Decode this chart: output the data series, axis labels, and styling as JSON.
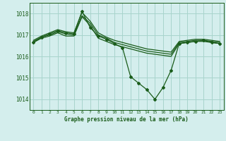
{
  "background_color": "#d4eeed",
  "grid_color": "#a8d4cc",
  "line_color": "#1a5c1a",
  "title": "Graphe pression niveau de la mer (hPa)",
  "xlim": [
    -0.5,
    23.5
  ],
  "ylim": [
    1013.5,
    1018.5
  ],
  "yticks": [
    1014,
    1015,
    1016,
    1017,
    1018
  ],
  "xticks": [
    0,
    1,
    2,
    3,
    4,
    5,
    6,
    7,
    8,
    9,
    10,
    11,
    12,
    13,
    14,
    15,
    16,
    17,
    18,
    19,
    20,
    21,
    22,
    23
  ],
  "series": [
    {
      "x": [
        0,
        1,
        2,
        3,
        4,
        5,
        6,
        7,
        8,
        9,
        10,
        11,
        12,
        13,
        14,
        15,
        16,
        17,
        18,
        19,
        20,
        21,
        22,
        23
      ],
      "y": [
        1016.65,
        1016.85,
        1016.95,
        1017.1,
        1016.95,
        1016.95,
        1017.85,
        1017.45,
        1016.85,
        1016.7,
        1016.55,
        1016.45,
        1016.35,
        1016.25,
        1016.15,
        1016.1,
        1016.05,
        1016.0,
        1016.6,
        1016.65,
        1016.7,
        1016.7,
        1016.65,
        1016.6
      ],
      "marker": false
    },
    {
      "x": [
        0,
        1,
        2,
        3,
        4,
        5,
        6,
        7,
        8,
        9,
        10,
        11,
        12,
        13,
        14,
        15,
        16,
        17,
        18,
        19,
        20,
        21,
        22,
        23
      ],
      "y": [
        1016.7,
        1016.9,
        1017.0,
        1017.15,
        1017.05,
        1017.0,
        1017.9,
        1017.55,
        1017.0,
        1016.85,
        1016.65,
        1016.55,
        1016.45,
        1016.35,
        1016.25,
        1016.2,
        1016.15,
        1016.1,
        1016.65,
        1016.7,
        1016.75,
        1016.75,
        1016.7,
        1016.65
      ],
      "marker": false
    },
    {
      "x": [
        0,
        1,
        2,
        3,
        4,
        5,
        6,
        7,
        8,
        9,
        10,
        11,
        12,
        13,
        14,
        15,
        16,
        17,
        18,
        19,
        20,
        21,
        22,
        23
      ],
      "y": [
        1016.75,
        1016.95,
        1017.1,
        1017.25,
        1017.15,
        1017.1,
        1018.05,
        1017.65,
        1017.1,
        1016.9,
        1016.75,
        1016.65,
        1016.55,
        1016.45,
        1016.35,
        1016.3,
        1016.25,
        1016.2,
        1016.7,
        1016.75,
        1016.8,
        1016.8,
        1016.75,
        1016.7
      ],
      "marker": false
    },
    {
      "x": [
        0,
        1,
        2,
        3,
        4,
        5,
        6,
        7,
        8,
        9,
        10,
        11,
        12,
        13,
        14,
        15,
        16,
        17,
        18,
        19,
        20,
        21,
        22,
        23
      ],
      "y": [
        1016.65,
        1016.9,
        1017.05,
        1017.2,
        1017.1,
        1017.05,
        1018.1,
        1017.35,
        1016.95,
        1016.8,
        1016.6,
        1016.4,
        1015.05,
        1014.75,
        1014.45,
        1014.0,
        1014.55,
        1015.35,
        1016.6,
        1016.65,
        1016.7,
        1016.75,
        1016.65,
        1016.6
      ],
      "marker": true
    }
  ]
}
